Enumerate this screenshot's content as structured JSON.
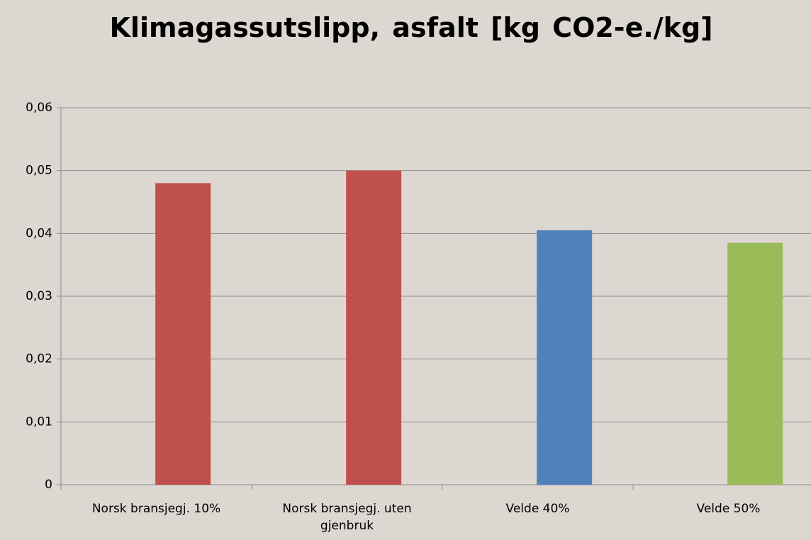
{
  "chart_data": {
    "type": "bar",
    "title": "Klimagassutslipp, asfalt [kg CO2-e./kg]",
    "categories": [
      "Norsk bransjegj. 10%",
      "Norsk bransjegj. uten gjenbruk",
      "Velde 40%",
      "Velde 50%"
    ],
    "values": [
      0.048,
      0.05,
      0.0405,
      0.0385
    ],
    "colors": [
      "#c0504d",
      "#c0504d",
      "#4f81bd",
      "#9bbb59"
    ],
    "ylim": [
      0,
      0.06
    ],
    "yticks": [
      0,
      {
        "value": 0.01,
        "label": "0,01"
      },
      {
        "value": 0.02,
        "label": "0,02"
      },
      {
        "value": 0.03,
        "label": "0,03"
      },
      {
        "value": 0.04,
        "label": "0,04"
      },
      {
        "value": 0.05,
        "label": "0,05"
      },
      {
        "value": 0.06,
        "label": "0,06"
      }
    ],
    "grid": true
  }
}
